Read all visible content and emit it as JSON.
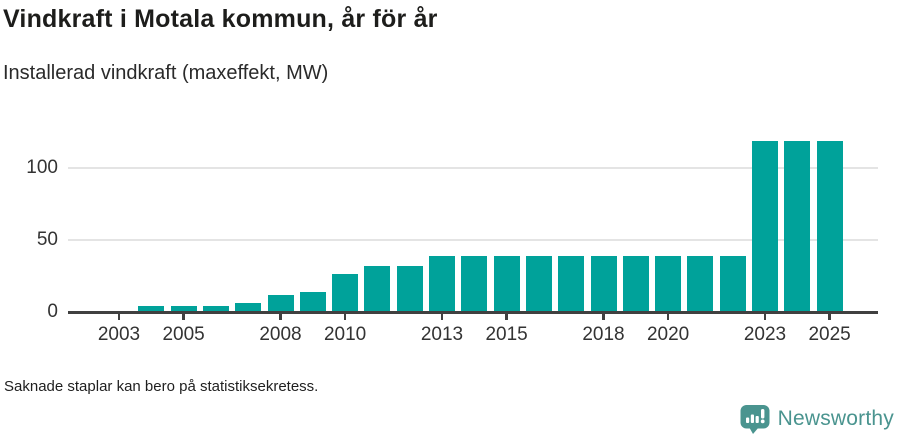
{
  "header": {
    "title": "Vindkraft i Motala kommun, år för år",
    "subtitle": "Installerad vindkraft (maxeffekt, MW)"
  },
  "chart_data": {
    "type": "bar",
    "title": "Vindkraft i Motala kommun, år för år",
    "ylabel": "Installerad vindkraft (maxeffekt, MW)",
    "unit": "MW",
    "categories": [
      2003,
      2004,
      2005,
      2006,
      2007,
      2008,
      2009,
      2010,
      2011,
      2012,
      2013,
      2014,
      2015,
      2016,
      2017,
      2018,
      2019,
      2020,
      2021,
      2022,
      2023,
      2024,
      2025
    ],
    "values": [
      null,
      4.5,
      4.5,
      4.5,
      6,
      11.5,
      14,
      26.5,
      32,
      32,
      39,
      39,
      39,
      39,
      39,
      39,
      39,
      39,
      39,
      39,
      119,
      119,
      119
    ],
    "ylim": [
      0,
      133
    ],
    "yticks": [
      0,
      50,
      100
    ],
    "xtick_years": [
      2003,
      2005,
      2008,
      2010,
      2013,
      2015,
      2018,
      2020,
      2023,
      2025
    ],
    "bar_color": "#00a29a",
    "gridline_color": "#e4e4e4",
    "axis_color": "#404040",
    "legend": "none",
    "grid": "horizontal"
  },
  "footer": {
    "note": "Saknade staplar kan bero på statistiksekretess."
  },
  "logo": {
    "text": "Newsworthy",
    "icon": "newsworthy-speech-bubble-chart-icon",
    "color": "#4a948f"
  }
}
